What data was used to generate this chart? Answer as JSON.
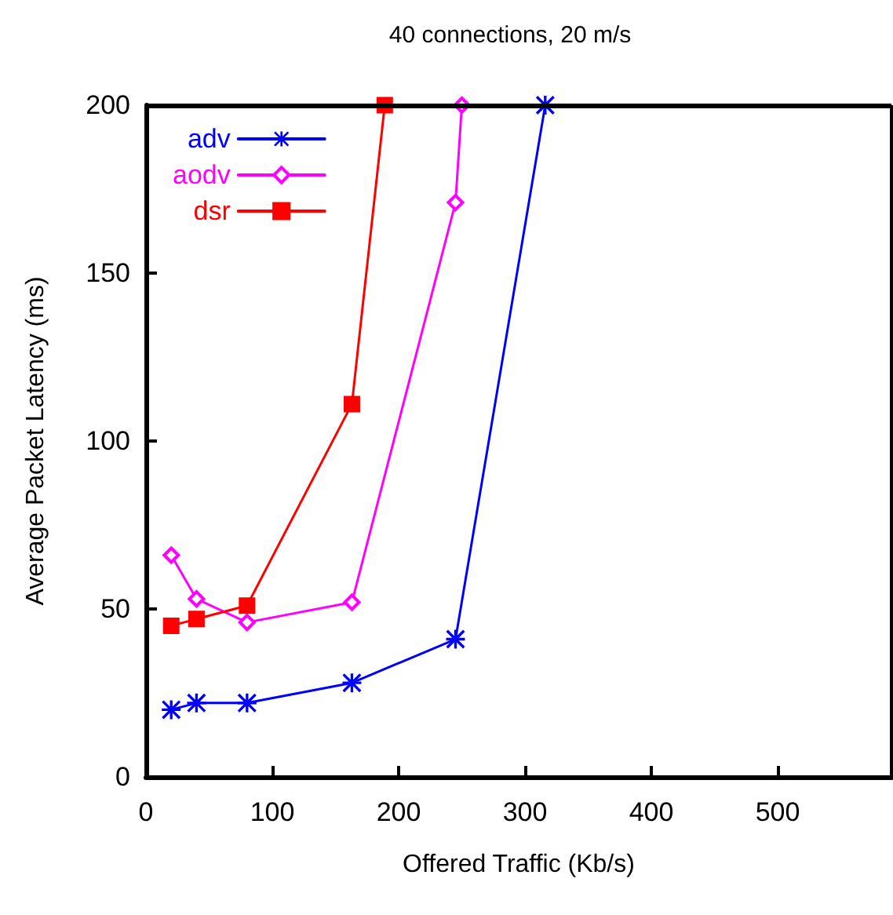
{
  "chart_data": {
    "type": "line",
    "title": "40 connections, 20 m/s",
    "xlabel": "Offered Traffic (Kb/s)",
    "ylabel": "Average Packet Latency (ms)",
    "xlim": [
      0,
      590
    ],
    "xticks": [
      0,
      100,
      200,
      300,
      400,
      500
    ],
    "ylim": [
      0,
      200
    ],
    "yticks": [
      0,
      50,
      100,
      150,
      200
    ],
    "grid": false,
    "legend": "top left",
    "series": [
      {
        "name": "adv",
        "color": "#0000ff",
        "marker": "star",
        "x": [
          20,
          40,
          80,
          163,
          245,
          316
        ],
        "values": [
          20,
          22,
          22,
          28,
          41,
          200
        ]
      },
      {
        "name": "aodv",
        "color": "#ff00ff",
        "marker": "diamond",
        "x": [
          20,
          40,
          80,
          163,
          245,
          250
        ],
        "values": [
          66,
          53,
          46,
          52,
          171,
          200
        ]
      },
      {
        "name": "dsr",
        "color": "#ff0000",
        "marker": "square",
        "x": [
          20,
          40,
          80,
          163,
          189
        ],
        "values": [
          45,
          47,
          51,
          111,
          200
        ]
      }
    ]
  }
}
